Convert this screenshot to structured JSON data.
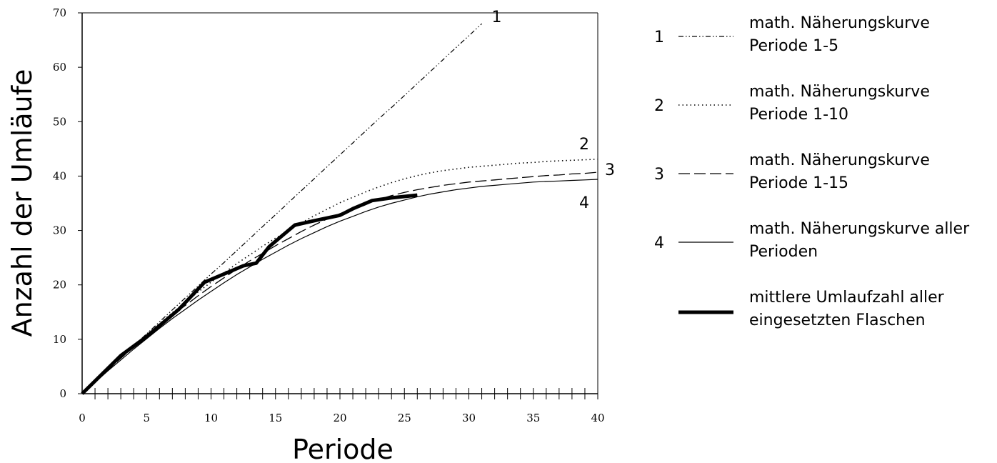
{
  "chart_data": {
    "type": "line",
    "title": "",
    "xlabel": "Periode",
    "ylabel": "Anzahl der Umläufe",
    "xlim": [
      0,
      40
    ],
    "ylim": [
      0,
      70
    ],
    "x_ticks": [
      0,
      5,
      10,
      15,
      20,
      25,
      30,
      35,
      40
    ],
    "y_ticks": [
      0,
      10,
      20,
      30,
      40,
      50,
      60,
      70
    ],
    "grid": false,
    "legend_position": "right",
    "series": [
      {
        "id": "1",
        "end_label": "1",
        "line_style": "dash-dot-dot",
        "legend": [
          "math. Näherungskurve",
          "Periode 1-5"
        ],
        "x": [
          0,
          1,
          2,
          3,
          4,
          5,
          6,
          7,
          8,
          9,
          10,
          11,
          12,
          13,
          14,
          15,
          16,
          17,
          18,
          19,
          20,
          21,
          22,
          23,
          24,
          25,
          26,
          27,
          28,
          29,
          30,
          31
        ],
        "y": [
          0,
          2.2,
          4.4,
          6.6,
          8.8,
          11,
          13.2,
          15.4,
          17.6,
          19.8,
          22,
          24.1,
          26.3,
          28.5,
          30.7,
          32.9,
          35.1,
          37.3,
          39.5,
          41.7,
          43.9,
          46.1,
          48.3,
          50.5,
          52.6,
          54.8,
          57.0,
          59.2,
          61.4,
          63.6,
          65.8,
          68.0
        ]
      },
      {
        "id": "2",
        "end_label": "2",
        "line_style": "dotted",
        "legend": [
          "math. Näherungskurve",
          "Periode 1-10"
        ],
        "x": [
          0,
          1,
          2,
          3,
          4,
          5,
          6,
          7,
          8,
          9,
          10,
          11,
          12,
          13,
          14,
          15,
          16,
          17,
          18,
          19,
          20,
          21,
          22,
          23,
          24,
          25,
          26,
          27,
          28,
          29,
          30,
          31,
          32,
          33,
          34,
          35,
          36,
          37,
          38,
          39,
          40
        ],
        "y": [
          0,
          2.3,
          4.5,
          6.7,
          8.8,
          10.9,
          12.9,
          14.9,
          16.8,
          18.7,
          20.5,
          22.2,
          23.9,
          25.5,
          27.1,
          28.6,
          30.0,
          31.4,
          32.7,
          33.9,
          35.1,
          36.1,
          37.1,
          38.0,
          38.8,
          39.5,
          40.1,
          40.6,
          41.0,
          41.3,
          41.6,
          41.8,
          42.0,
          42.2,
          42.4,
          42.5,
          42.7,
          42.8,
          42.9,
          43.0,
          43.1
        ]
      },
      {
        "id": "3",
        "end_label": "3",
        "line_style": "dashed",
        "legend": [
          "math. Näherungskurve",
          "Periode 1-15"
        ],
        "x": [
          0,
          1,
          2,
          3,
          4,
          5,
          6,
          7,
          8,
          9,
          10,
          11,
          12,
          13,
          14,
          15,
          16,
          17,
          18,
          19,
          20,
          21,
          22,
          23,
          24,
          25,
          26,
          27,
          28,
          29,
          30,
          31,
          32,
          33,
          34,
          35,
          36,
          37,
          38,
          39,
          40
        ],
        "y": [
          0,
          2.2,
          4.4,
          6.5,
          8.6,
          10.6,
          12.5,
          14.4,
          16.2,
          18.0,
          19.7,
          21.3,
          22.9,
          24.4,
          25.8,
          27.2,
          28.5,
          29.8,
          31.0,
          32.1,
          33.1,
          34.0,
          34.9,
          35.7,
          36.4,
          37.0,
          37.5,
          37.9,
          38.3,
          38.6,
          38.9,
          39.1,
          39.3,
          39.5,
          39.7,
          39.9,
          40.1,
          40.2,
          40.4,
          40.5,
          40.7
        ]
      },
      {
        "id": "4",
        "end_label": "4",
        "line_style": "solid-thin",
        "legend": [
          "math. Näherungskurve aller",
          "Perioden"
        ],
        "x": [
          0,
          1,
          2,
          3,
          4,
          5,
          6,
          7,
          8,
          9,
          10,
          11,
          12,
          13,
          14,
          15,
          16,
          17,
          18,
          19,
          20,
          21,
          22,
          23,
          24,
          25,
          26,
          27,
          28,
          29,
          30,
          31,
          32,
          33,
          34,
          35,
          36,
          37,
          38,
          39,
          40
        ],
        "y": [
          0,
          2.1,
          4.2,
          6.2,
          8.2,
          10.1,
          12.0,
          13.8,
          15.5,
          17.2,
          18.8,
          20.4,
          21.9,
          23.3,
          24.7,
          26.0,
          27.3,
          28.5,
          29.6,
          30.7,
          31.7,
          32.6,
          33.5,
          34.3,
          35.0,
          35.6,
          36.2,
          36.7,
          37.1,
          37.5,
          37.8,
          38.1,
          38.3,
          38.5,
          38.7,
          38.9,
          39.0,
          39.1,
          39.2,
          39.3,
          39.4
        ]
      },
      {
        "id": "5",
        "end_label": "",
        "line_style": "solid-thick",
        "legend": [
          "mittlere Umlaufzahl aller",
          "eingesetzten Flaschen"
        ],
        "x": [
          0,
          3,
          5,
          6,
          7.5,
          9.5,
          11.5,
          12.5,
          13.5,
          14.5,
          16.5,
          18,
          20,
          21,
          22.5,
          24,
          26
        ],
        "y": [
          0,
          7,
          10.5,
          12.5,
          15.5,
          20.5,
          22.5,
          23.5,
          24,
          27,
          31,
          31.8,
          32.8,
          34,
          35.5,
          36,
          36.5
        ]
      }
    ]
  }
}
